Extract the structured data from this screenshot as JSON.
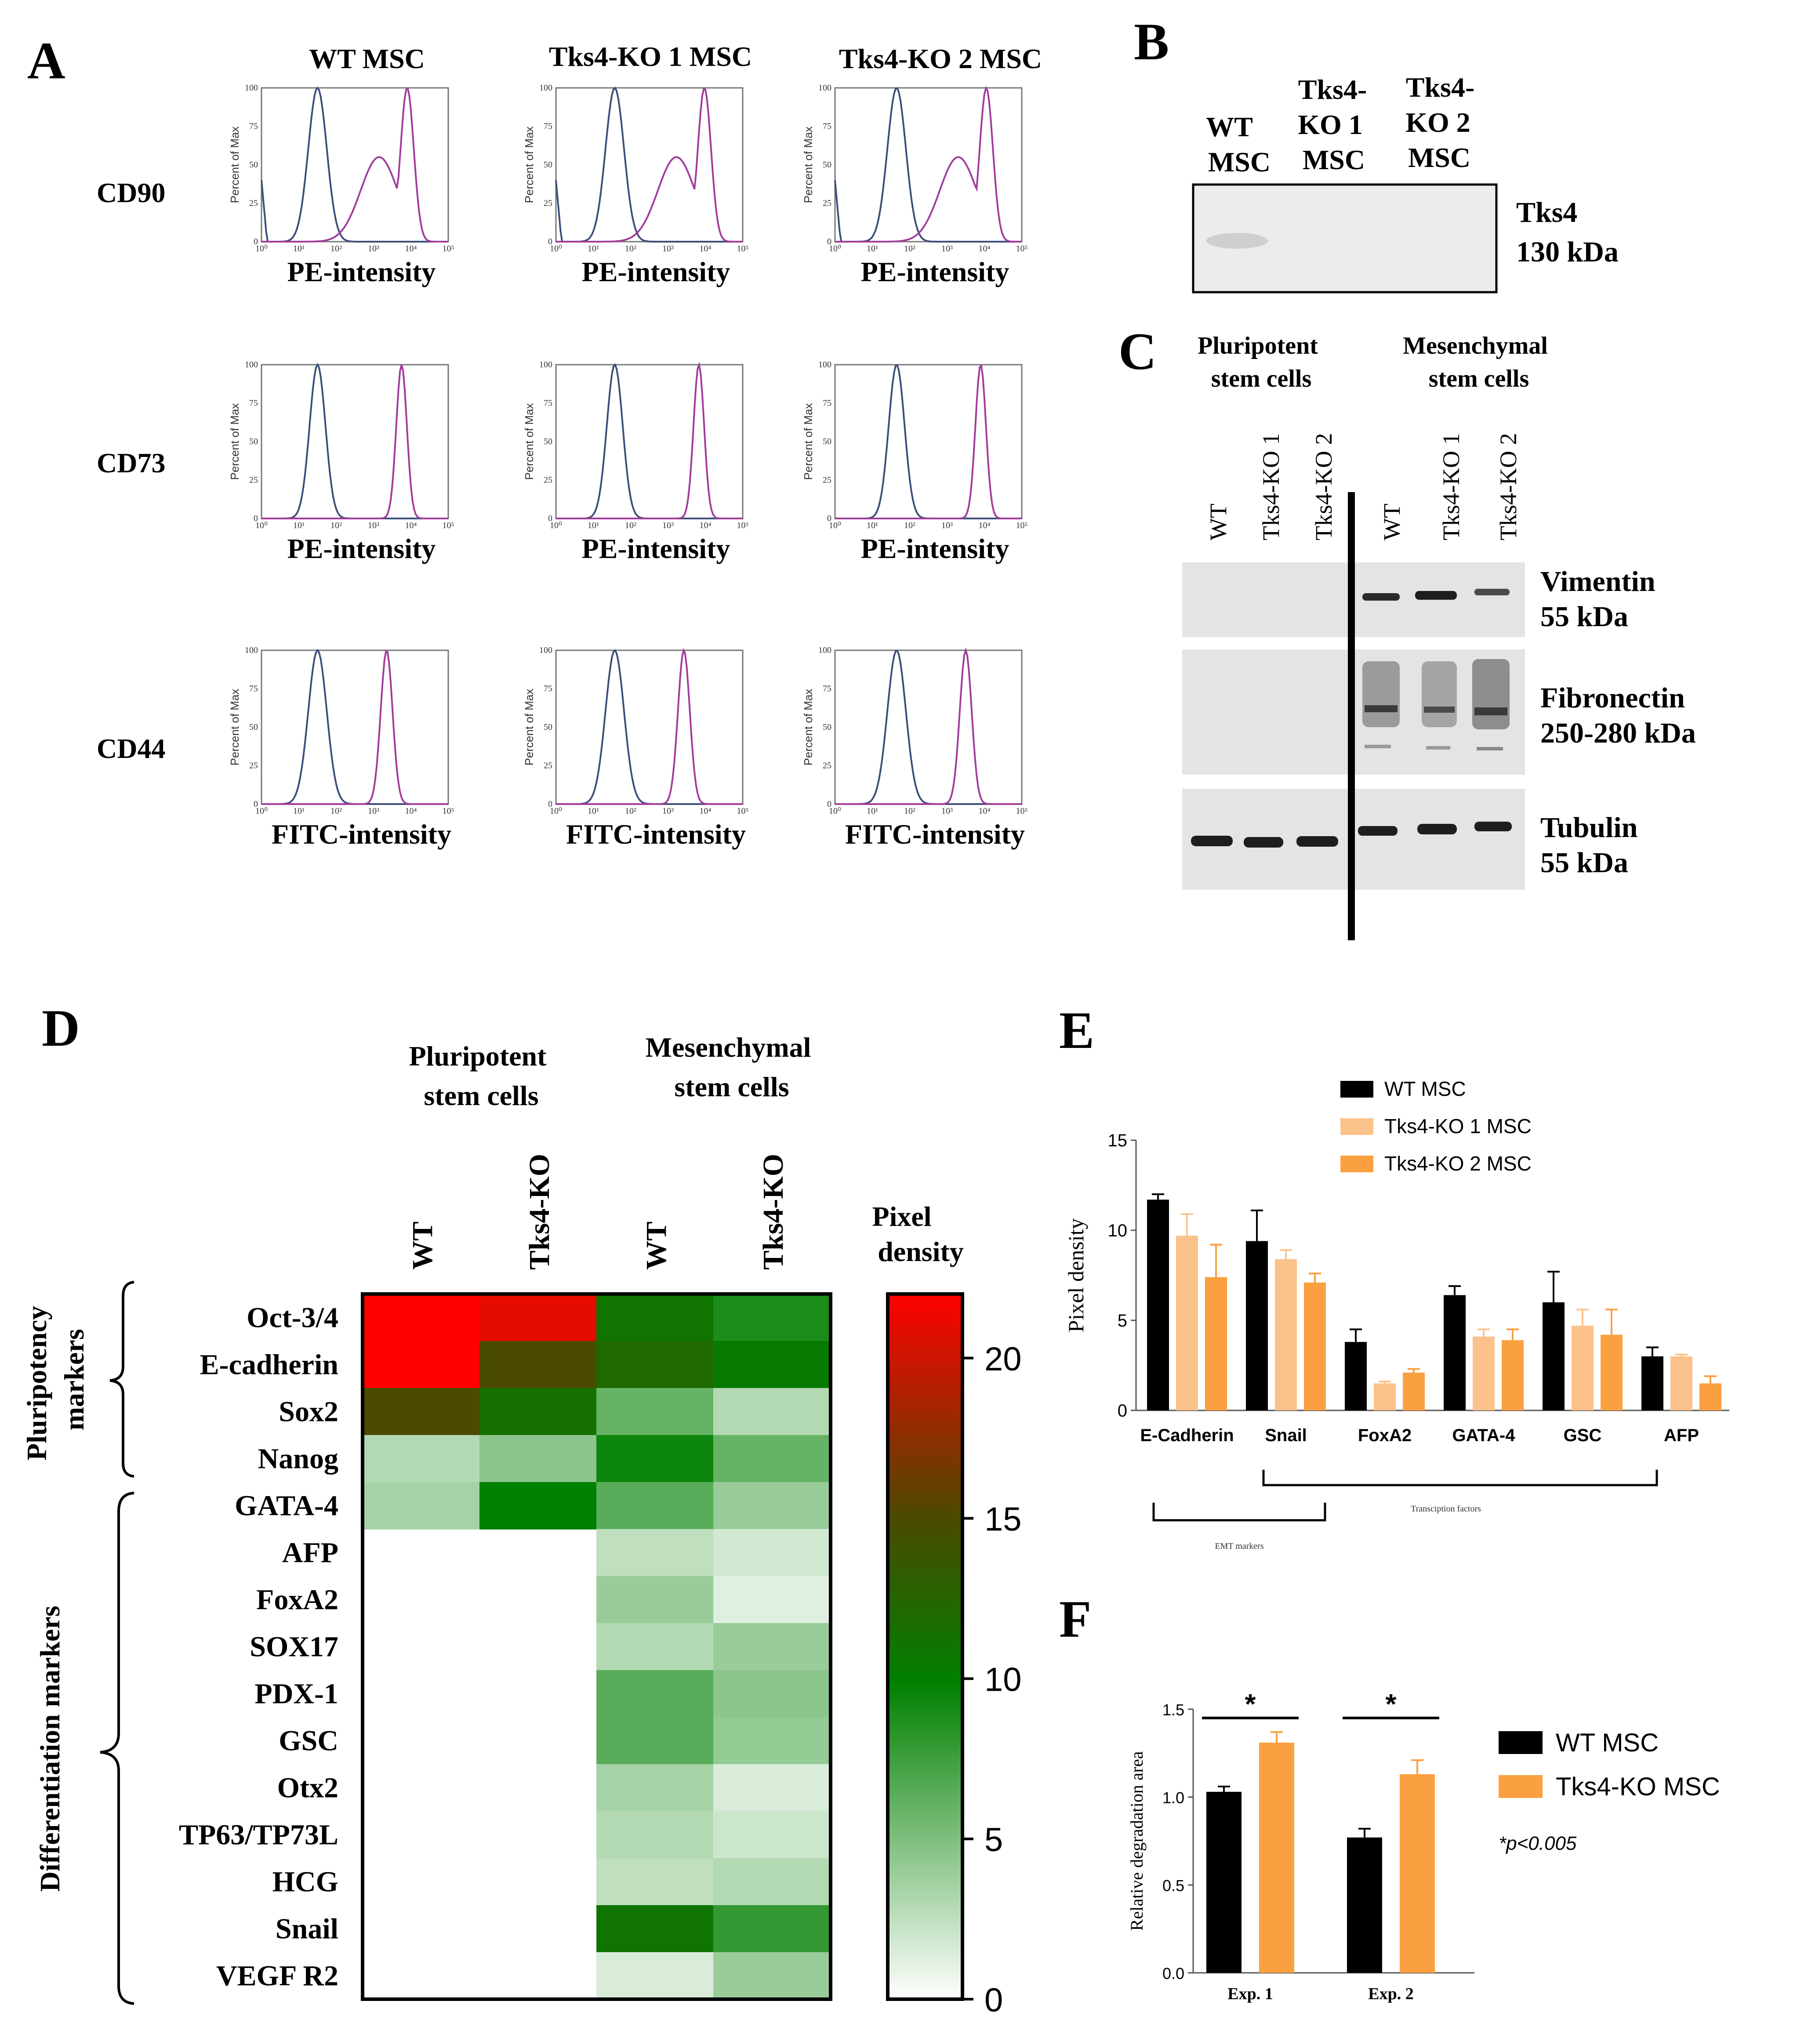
{
  "panels": {
    "A": "A",
    "B": "B",
    "C": "C",
    "D": "D",
    "E": "E",
    "F": "F"
  },
  "panelA": {
    "columns": [
      "WT MSC",
      "Tks4-KO 1 MSC",
      "Tks4-KO 2 MSC"
    ],
    "rows": [
      {
        "marker": "CD90",
        "xlabel": "PE-intensity"
      },
      {
        "marker": "CD73",
        "xlabel": "PE-intensity"
      },
      {
        "marker": "CD44",
        "xlabel": "FITC-intensity"
      }
    ],
    "ylabel": "Percent of Max",
    "yticks": [
      "0",
      "25",
      "50",
      "75",
      "100"
    ],
    "xticks": [
      "10⁰",
      "10¹",
      "10²",
      "10³",
      "10⁴",
      "10⁵"
    ],
    "colors": {
      "control": "#3c4f7a",
      "stain": "#a23c9b"
    }
  },
  "panelB": {
    "lanes": [
      [
        "WT",
        "MSC"
      ],
      [
        "Tks4-",
        "KO 1",
        "MSC"
      ],
      [
        "Tks4-",
        "KO 2",
        "MSC"
      ]
    ],
    "protein": "Tks4",
    "size": "130 kDa"
  },
  "panelC": {
    "groups": [
      [
        "Pluripotent",
        "stem cells"
      ],
      [
        "Mesenchymal",
        "stem cells"
      ]
    ],
    "lanes": [
      "WT",
      "Tks4-KO 1",
      "Tks4-KO 2",
      "WT",
      "Tks4-KO 1",
      "Tks4-KO 2"
    ],
    "blots": [
      {
        "name": "Vimentin",
        "size": "55 kDa"
      },
      {
        "name": "Fibronectin",
        "size": "250-280 kDa"
      },
      {
        "name": "Tubulin",
        "size": "55 kDa"
      }
    ]
  },
  "panelD": {
    "groups": [
      [
        "Pluripotent",
        "stem cells"
      ],
      [
        "Mesenchymal",
        "stem cells"
      ]
    ],
    "columns": [
      "WT",
      "Tks4-KO",
      "WT",
      "Tks4-KO"
    ],
    "legend_title": [
      "Pixel",
      "density"
    ],
    "brackets": [
      [
        "Pluripotency",
        "markers"
      ],
      [
        "Differentiation markers"
      ]
    ],
    "scale_ticks": [
      20,
      15,
      10,
      5,
      0
    ],
    "scale_max": 22,
    "rows": [
      {
        "name": "Oct-3/4",
        "values": [
          22,
          21,
          11,
          9
        ]
      },
      {
        "name": "E-cadherin",
        "values": [
          22,
          15,
          12,
          10.5
        ]
      },
      {
        "name": "Sox2",
        "values": [
          15,
          11.5,
          6,
          3
        ]
      },
      {
        "name": "Nanog",
        "values": [
          3,
          4.5,
          9.5,
          6
        ]
      },
      {
        "name": "GATA-4",
        "values": [
          3.5,
          10,
          6.5,
          4
        ]
      },
      {
        "name": "AFP",
        "values": [
          null,
          null,
          2.5,
          1.8
        ]
      },
      {
        "name": "FoxA2",
        "values": [
          null,
          null,
          4,
          1.2
        ]
      },
      {
        "name": "SOX17",
        "values": [
          null,
          null,
          3,
          4
        ]
      },
      {
        "name": "PDX-1",
        "values": [
          null,
          null,
          6.5,
          4.5
        ]
      },
      {
        "name": "GSC",
        "values": [
          null,
          null,
          6.5,
          4.2
        ]
      },
      {
        "name": "Otx2",
        "values": [
          null,
          null,
          3.5,
          1.5
        ]
      },
      {
        "name": "TP63/TP73L",
        "values": [
          null,
          null,
          3,
          2
        ]
      },
      {
        "name": "HCG",
        "values": [
          null,
          null,
          2.5,
          3
        ]
      },
      {
        "name": "Snail",
        "values": [
          null,
          null,
          11,
          8
        ]
      },
      {
        "name": "VEGF R2",
        "values": [
          null,
          null,
          1.5,
          4
        ]
      }
    ]
  },
  "panelE": {
    "bracket_labels": [
      "Transciption factors",
      "EMT markers"
    ]
  },
  "panelF": {
    "significance": [
      "*",
      "*"
    ],
    "note": "*p<0.005"
  },
  "chart_data": [
    {
      "type": "bar",
      "title": "",
      "ylabel": "Pixel density",
      "xlabel": "",
      "ylim": [
        0,
        15
      ],
      "yticks": [
        0,
        5,
        10,
        15
      ],
      "categories": [
        "E-Cadherin",
        "Snail",
        "FoxA2",
        "GATA-4",
        "GSC",
        "AFP"
      ],
      "series": [
        {
          "name": "WT MSC",
          "color": "#000000",
          "values": [
            11.7,
            9.4,
            3.8,
            6.4,
            6.0,
            3.0
          ],
          "errors": [
            0.3,
            1.7,
            0.7,
            0.5,
            1.7,
            0.5
          ]
        },
        {
          "name": "Tks4-KO 1 MSC",
          "color": "#fcc28b",
          "values": [
            9.7,
            8.4,
            1.5,
            4.1,
            4.7,
            3.0
          ],
          "errors": [
            1.2,
            0.5,
            0.1,
            0.4,
            0.9,
            0.1
          ]
        },
        {
          "name": "Tks4-KO 2 MSC",
          "color": "#fba040",
          "values": [
            7.4,
            7.1,
            2.1,
            3.9,
            4.2,
            1.5
          ],
          "errors": [
            1.8,
            0.5,
            0.2,
            0.6,
            1.4,
            0.4
          ]
        }
      ]
    },
    {
      "type": "bar",
      "title": "",
      "ylabel": "Relative degradation area",
      "xlabel": "",
      "ylim": [
        0,
        1.5
      ],
      "yticks": [
        "0.0",
        "0.5",
        "1.0",
        "1.5"
      ],
      "categories": [
        "Exp. 1",
        "Exp. 2"
      ],
      "series": [
        {
          "name": "WT MSC",
          "color": "#000000",
          "values": [
            1.03,
            0.77
          ],
          "errors": [
            0.03,
            0.05
          ]
        },
        {
          "name": "Tks4-KO MSC",
          "color": "#fba040",
          "values": [
            1.31,
            1.13
          ],
          "errors": [
            0.06,
            0.08
          ]
        }
      ]
    }
  ]
}
